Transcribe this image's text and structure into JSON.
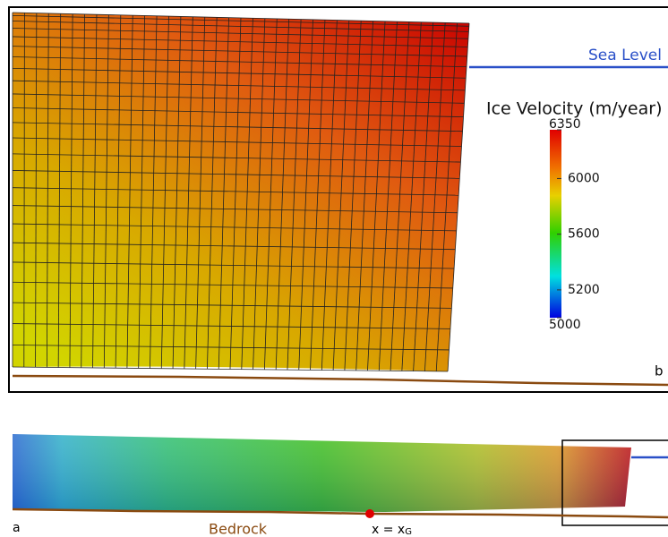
{
  "panel_b": {
    "label": "b",
    "sea_level": "Sea Level",
    "colorbar": {
      "title": "Ice Velocity (m/year)",
      "range": [
        5000,
        6350
      ],
      "ticks": [
        6350,
        6000,
        5600,
        5200,
        5000
      ]
    }
  },
  "panel_a": {
    "label": "a",
    "bedrock": "Bedrock",
    "grounding_line": {
      "text": "x = x",
      "subscript": "G"
    }
  }
}
